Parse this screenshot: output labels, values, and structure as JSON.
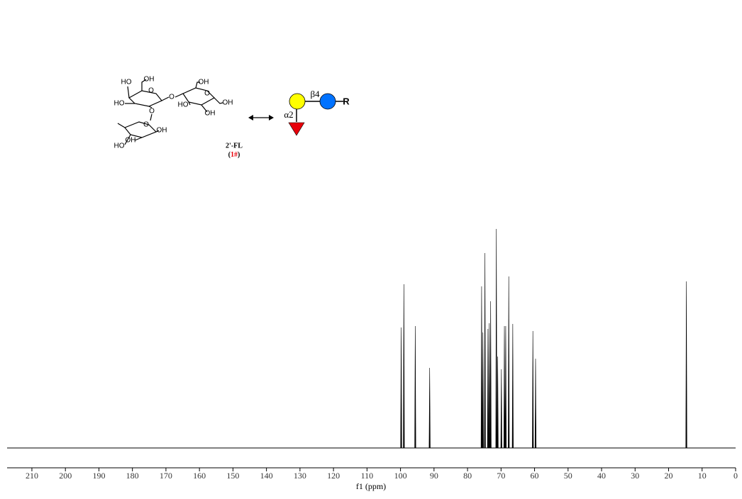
{
  "chart_data": {
    "type": "nmr",
    "x_label": "f1 (ppm)",
    "x": [
      99.8,
      99.0,
      95.6,
      91.3,
      75.8,
      75.4,
      74.8,
      73.9,
      73.5,
      73.1,
      71.4,
      71.0,
      69.9,
      69.0,
      68.6,
      67.7,
      66.5,
      60.5,
      59.7,
      14.7
    ],
    "values": [
      170,
      231,
      172,
      113,
      228,
      163,
      275,
      168,
      176,
      207,
      309,
      129,
      111,
      172,
      172,
      242,
      175,
      165,
      126,
      235
    ],
    "color": "#000000",
    "xlim": [
      217.4,
      0
    ],
    "xticks": [
      210,
      200,
      190,
      180,
      170,
      160,
      150,
      140,
      130,
      120,
      110,
      100,
      90,
      80,
      70,
      60,
      50,
      40,
      30,
      20,
      10,
      0
    ],
    "ylim": [
      0,
      320
    ]
  },
  "structure": {
    "atom_labels": [
      "HO",
      "OH",
      "O",
      "HO",
      "O",
      "OH",
      "O",
      "HO",
      "OH",
      "OH",
      "O",
      "O",
      "OH",
      "HO",
      "OH"
    ],
    "linkage_beta": "β4",
    "linkage_alpha": "α2",
    "aglycone": "R",
    "compound_name": "2'-FL",
    "compound_label": [
      "(",
      "1#",
      ")"
    ]
  }
}
